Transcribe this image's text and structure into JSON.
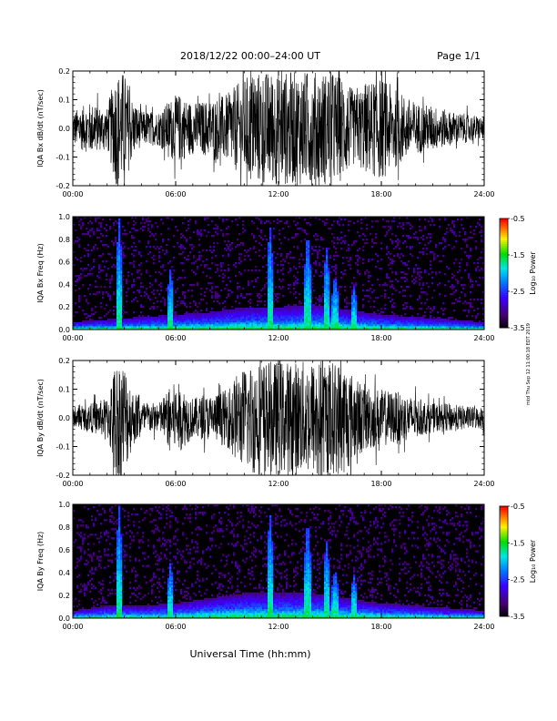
{
  "header": {
    "title": "2018/12/22  00:00–24:00 UT",
    "page": "Page 1/1"
  },
  "side_note": "mtd Thu Sep 12 11:00:18 EDT 2019",
  "x_axis_title": "Universal Time (hh:mm)",
  "x_ticks": [
    "00:00",
    "06:00",
    "12:00",
    "18:00",
    "24:00"
  ],
  "colors": {
    "trace": "#000000",
    "background": "#ffffff",
    "spectrogram_bg": "#000000"
  },
  "chart_data": [
    {
      "id": "bx-wave",
      "type": "line",
      "ylabel": "IQA Bx dB/dt (nT/sec)",
      "y_ticks": [
        "0.2",
        "0.1",
        "0.0",
        "-0.1",
        "-0.2"
      ],
      "ylim": [
        -0.2,
        0.2
      ],
      "xlim": [
        0,
        24
      ],
      "x_unit": "hours UT",
      "amplitude_hours": [
        0,
        1,
        2,
        2.5,
        3,
        3.5,
        4,
        5,
        5.8,
        6.2,
        7,
        8,
        9,
        9.5,
        10.5,
        12,
        13.5,
        14.5,
        15.2,
        15.8,
        16.5,
        17,
        18,
        19,
        20,
        21,
        22,
        23,
        24
      ],
      "amplitude_values": [
        0.06,
        0.09,
        0.07,
        0.2,
        0.2,
        0.1,
        0.06,
        0.06,
        0.11,
        0.12,
        0.09,
        0.1,
        0.12,
        0.15,
        0.2,
        0.2,
        0.2,
        0.2,
        0.2,
        0.18,
        0.12,
        0.16,
        0.18,
        0.13,
        0.09,
        0.08,
        0.06,
        0.05,
        0.04
      ]
    },
    {
      "id": "bx-spec",
      "type": "heatmap",
      "ylabel": "IQA Bx Freq (Hz)",
      "y_ticks": [
        "1.0",
        "0.8",
        "0.6",
        "0.4",
        "0.2",
        "0.0"
      ],
      "ylim": [
        0,
        1
      ],
      "xlim": [
        0,
        24
      ],
      "colorbar": {
        "label": "Log₁₀ Power",
        "ticks": [
          "-0.5",
          "-1.5",
          "-2.5",
          "-3.5"
        ],
        "range": [
          -3.5,
          -0.5
        ]
      },
      "background_hours": [
        0,
        2,
        4,
        6,
        8,
        10,
        12,
        14,
        16,
        18,
        20,
        22,
        24
      ],
      "background_cutoff_hz": [
        0.03,
        0.04,
        0.05,
        0.06,
        0.07,
        0.09,
        0.09,
        0.1,
        0.08,
        0.06,
        0.05,
        0.04,
        0.03
      ],
      "bursts": [
        {
          "hour": 2.7,
          "top_hz": 1.0
        },
        {
          "hour": 5.7,
          "top_hz": 0.55
        },
        {
          "hour": 11.5,
          "top_hz": 0.95
        },
        {
          "hour": 13.7,
          "top_hz": 0.9
        },
        {
          "hour": 14.8,
          "top_hz": 0.75
        },
        {
          "hour": 15.3,
          "top_hz": 0.5
        },
        {
          "hour": 16.4,
          "top_hz": 0.4
        }
      ]
    },
    {
      "id": "by-wave",
      "type": "line",
      "ylabel": "IQA By dB/dt (nT/sec)",
      "y_ticks": [
        "0.2",
        "0.1",
        "0.0",
        "-0.1",
        "-0.2"
      ],
      "ylim": [
        -0.2,
        0.2
      ],
      "xlim": [
        0,
        24
      ],
      "x_unit": "hours UT",
      "amplitude_hours": [
        0,
        1,
        2,
        2.5,
        3,
        3.5,
        4,
        5,
        5.8,
        6.2,
        7,
        8,
        9,
        9.5,
        10.5,
        12,
        13.5,
        14.5,
        15.2,
        15.8,
        16.5,
        17,
        18,
        19,
        20,
        21,
        22,
        23,
        24
      ],
      "amplitude_values": [
        0.03,
        0.05,
        0.07,
        0.2,
        0.2,
        0.1,
        0.06,
        0.05,
        0.12,
        0.12,
        0.07,
        0.08,
        0.1,
        0.15,
        0.2,
        0.2,
        0.2,
        0.2,
        0.2,
        0.2,
        0.14,
        0.12,
        0.1,
        0.09,
        0.07,
        0.05,
        0.05,
        0.04,
        0.04
      ]
    },
    {
      "id": "by-spec",
      "type": "heatmap",
      "ylabel": "IQA By Freq (Hz)",
      "y_ticks": [
        "1.0",
        "0.8",
        "0.6",
        "0.4",
        "0.2",
        "0.0"
      ],
      "ylim": [
        0,
        1
      ],
      "xlim": [
        0,
        24
      ],
      "colorbar": {
        "label": "Log₁₀ Power",
        "ticks": [
          "-0.5",
          "-1.5",
          "-2.5",
          "-3.5"
        ],
        "range": [
          -3.5,
          -0.5
        ]
      },
      "background_hours": [
        0,
        2,
        4,
        6,
        8,
        10,
        12,
        14,
        16,
        18,
        20,
        22,
        24
      ],
      "background_cutoff_hz": [
        0.03,
        0.05,
        0.05,
        0.06,
        0.08,
        0.1,
        0.1,
        0.1,
        0.08,
        0.06,
        0.05,
        0.04,
        0.03
      ],
      "bursts": [
        {
          "hour": 2.7,
          "top_hz": 1.0
        },
        {
          "hour": 5.7,
          "top_hz": 0.5
        },
        {
          "hour": 11.5,
          "top_hz": 0.95
        },
        {
          "hour": 13.7,
          "top_hz": 0.9
        },
        {
          "hour": 14.8,
          "top_hz": 0.7
        },
        {
          "hour": 15.3,
          "top_hz": 0.45
        },
        {
          "hour": 16.4,
          "top_hz": 0.4
        }
      ]
    }
  ]
}
